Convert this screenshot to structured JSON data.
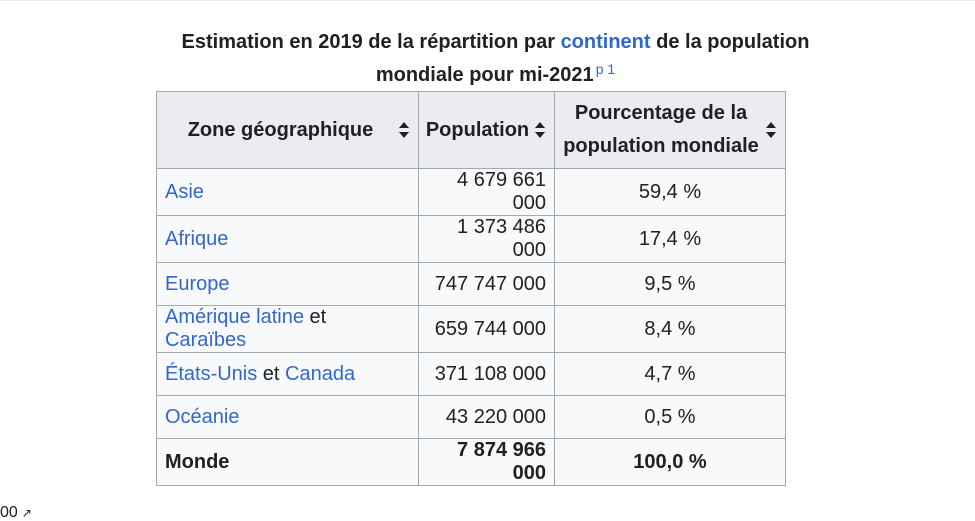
{
  "caption": {
    "before": "Estimation en 2019 de la répartition par ",
    "link": "continent",
    "after": " de la population mondiale pour mi-2021",
    "ref": "p 1"
  },
  "headers": [
    "Zone géographique",
    "Population",
    "Pourcentage de la population mondiale"
  ],
  "rows": [
    {
      "zone_a": "Asie",
      "zone_sep": "",
      "zone_b": "",
      "population": "4 679 661 000",
      "percent": "59,4 %"
    },
    {
      "zone_a": "Afrique",
      "zone_sep": "",
      "zone_b": "",
      "population": "1 373 486 000",
      "percent": "17,4 %"
    },
    {
      "zone_a": "Europe",
      "zone_sep": "",
      "zone_b": "",
      "population": "747 747 000",
      "percent": "9,5 %"
    },
    {
      "zone_a": "Amérique latine",
      "zone_sep": " et ",
      "zone_b": "Caraïbes",
      "population": "659 744 000",
      "percent": "8,4 %"
    },
    {
      "zone_a": "États-Unis",
      "zone_sep": " et ",
      "zone_b": "Canada",
      "population": "371 108 000",
      "percent": "4,7 %"
    },
    {
      "zone_a": "Océanie",
      "zone_sep": "",
      "zone_b": "",
      "population": "43 220 000",
      "percent": "0,5 %"
    }
  ],
  "total": {
    "zone": "Monde",
    "population": "7 874 966 000",
    "percent": "100,0 %"
  },
  "bottom_fragment": {
    "text": "00",
    "icon": "external-link-icon"
  },
  "colors": {
    "link": "#3366cc",
    "header_bg": "#eaecf0",
    "cell_bg": "#f8f9fa",
    "border": "#a2a9b1"
  }
}
